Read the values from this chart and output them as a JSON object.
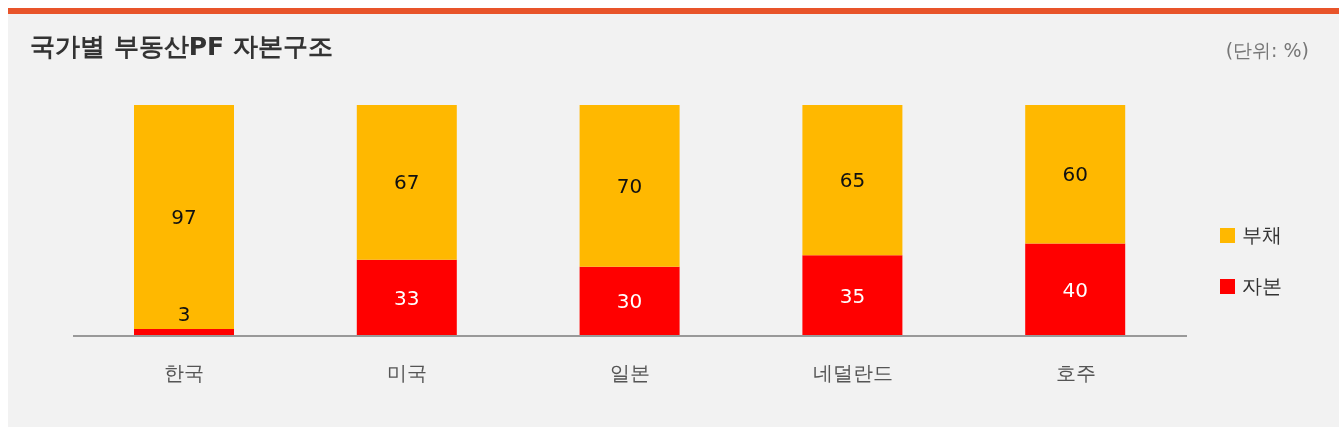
{
  "chart_data": {
    "type": "bar",
    "title": "국가별 부동산PF 자본구조",
    "annotations": [
      "(단위: %)"
    ],
    "categories": [
      "한국",
      "미국",
      "일본",
      "네덜란드",
      "호주"
    ],
    "series": [
      {
        "name": "자본",
        "color": "#ff0000",
        "values": [
          3,
          33,
          30,
          35,
          40
        ]
      },
      {
        "name": "부채",
        "color": "#ffb800",
        "values": [
          97,
          67,
          70,
          65,
          60
        ]
      }
    ],
    "stacked": true,
    "data_labels": true,
    "legend": "right",
    "tick_labels": "x",
    "grid": false
  }
}
